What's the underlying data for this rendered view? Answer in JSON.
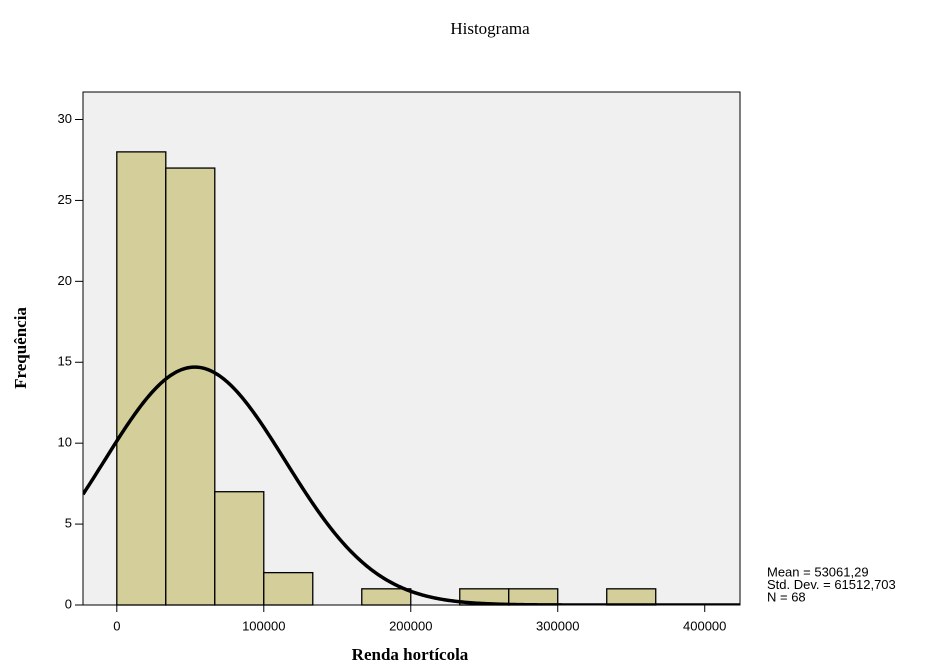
{
  "chart_data": {
    "type": "histogram",
    "title": "Histograma",
    "xlabel": "Renda hortícola",
    "ylabel": "Frequência",
    "bins": [
      0,
      33333,
      66667,
      100000,
      133333,
      166667,
      200000,
      233333,
      266667,
      300000,
      333333,
      366667
    ],
    "values": [
      28,
      27,
      7,
      2,
      0,
      1,
      0,
      1,
      1,
      0,
      1
    ],
    "color": "#d4cf9a",
    "xlim": [
      -23000,
      424000
    ],
    "xticks": [
      0,
      100000,
      200000,
      300000,
      400000
    ],
    "ylim": [
      0,
      31.7
    ],
    "yticks": [
      0,
      5,
      10,
      15,
      20,
      25,
      30
    ],
    "normal_curve": [
      {
        "value": 53061.29,
        "label": "Mean = 53061,29"
      },
      {
        "value": 61512.703,
        "label": "Std. Dev. = 61512,703"
      },
      {
        "value": 68,
        "label": "N = 68"
      }
    ]
  }
}
